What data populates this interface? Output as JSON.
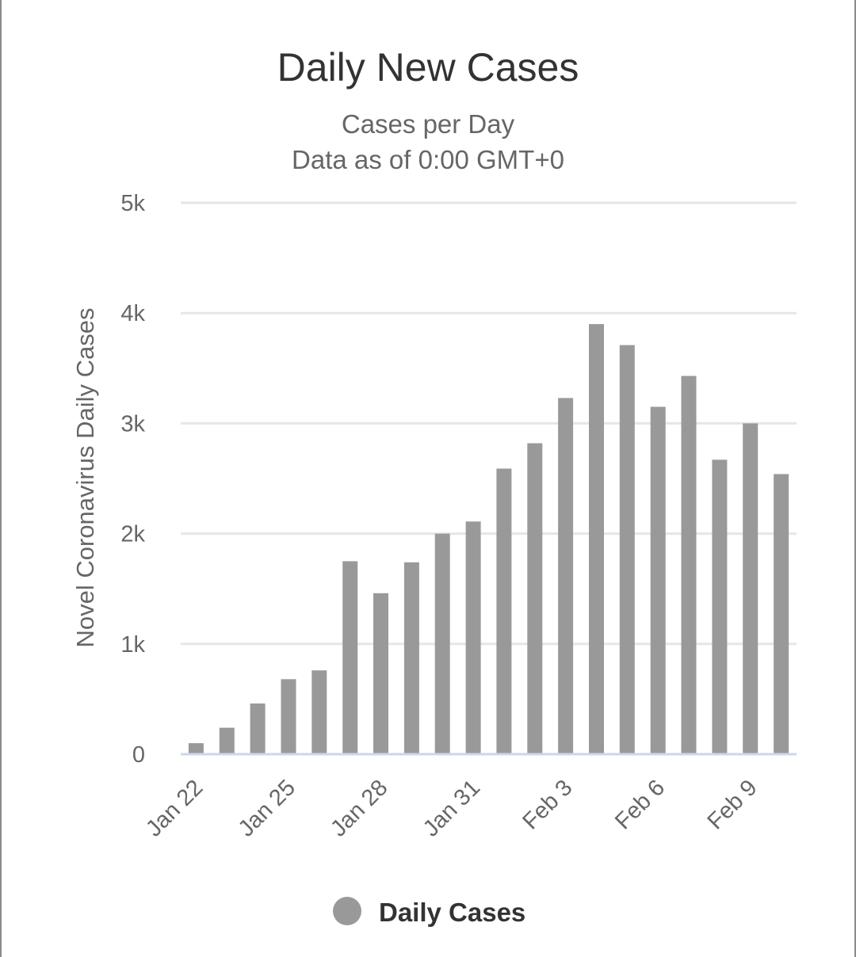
{
  "chart_data": {
    "type": "bar",
    "title": "Daily New Cases",
    "subtitle_lines": [
      "Cases per Day",
      "Data as of 0:00 GMT+0"
    ],
    "ylabel": "Novel Coronavirus Daily Cases",
    "xlabel": "",
    "ylim": [
      0,
      5000
    ],
    "yticks": [
      {
        "value": 0,
        "label": "0"
      },
      {
        "value": 1000,
        "label": "1k"
      },
      {
        "value": 2000,
        "label": "2k"
      },
      {
        "value": 3000,
        "label": "3k"
      },
      {
        "value": 4000,
        "label": "4k"
      },
      {
        "value": 5000,
        "label": "5k"
      }
    ],
    "categories": [
      "Jan 22",
      "Jan 23",
      "Jan 24",
      "Jan 25",
      "Jan 26",
      "Jan 27",
      "Jan 28",
      "Jan 29",
      "Jan 30",
      "Jan 31",
      "Feb 1",
      "Feb 2",
      "Feb 3",
      "Feb 4",
      "Feb 5",
      "Feb 6",
      "Feb 7",
      "Feb 8",
      "Feb 9",
      "Feb 10"
    ],
    "xtick_labels": [
      "Jan 22",
      "",
      "",
      "Jan 25",
      "",
      "",
      "Jan 28",
      "",
      "",
      "Jan 31",
      "",
      "",
      "Feb 3",
      "",
      "",
      "Feb 6",
      "",
      "",
      "Feb 9",
      ""
    ],
    "grid": true,
    "legend_position": "bottom",
    "series": [
      {
        "name": "Daily Cases",
        "color": "#999999",
        "values": [
          100,
          240,
          460,
          680,
          760,
          1750,
          1460,
          1740,
          2000,
          2110,
          2590,
          2820,
          3230,
          3900,
          3710,
          3150,
          3430,
          2670,
          3000,
          2540
        ]
      }
    ]
  }
}
